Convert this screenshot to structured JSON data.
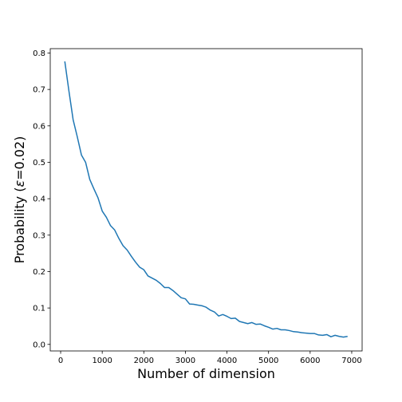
{
  "chart_data": {
    "type": "line",
    "title": "",
    "xlabel": "Number of dimension",
    "ylabel_prefix": "Probability (",
    "ylabel_symbol": "ε",
    "ylabel_suffix": "=0.02)",
    "xlim": [
      -250,
      7250
    ],
    "ylim": [
      -0.018,
      0.812
    ],
    "xticks": [
      0,
      1000,
      2000,
      3000,
      4000,
      5000,
      6000,
      7000
    ],
    "yticks": [
      0.0,
      0.1,
      0.2,
      0.3,
      0.4,
      0.5,
      0.6,
      0.7,
      0.8
    ],
    "ytick_decimals": 1,
    "grid": false,
    "series": [
      {
        "color": "#1f77b4",
        "x": [
          100,
          200,
          300,
          400,
          500,
          600,
          700,
          800,
          900,
          1000,
          1100,
          1200,
          1300,
          1400,
          1500,
          1600,
          1700,
          1800,
          1900,
          2000,
          2100,
          2200,
          2300,
          2400,
          2500,
          2600,
          2700,
          2800,
          2900,
          3000,
          3100,
          3200,
          3300,
          3400,
          3500,
          3600,
          3700,
          3800,
          3900,
          4000,
          4100,
          4200,
          4300,
          4400,
          4500,
          4600,
          4700,
          4800,
          4900,
          5000,
          5100,
          5200,
          5300,
          5400,
          5500,
          5600,
          5700,
          5800,
          5900,
          6000,
          6100,
          6200,
          6300,
          6400,
          6500,
          6600,
          6700,
          6800,
          6900
        ],
        "y": [
          0.777,
          0.695,
          0.617,
          0.57,
          0.52,
          0.5,
          0.453,
          0.427,
          0.402,
          0.366,
          0.349,
          0.326,
          0.314,
          0.291,
          0.271,
          0.259,
          0.242,
          0.226,
          0.212,
          0.205,
          0.188,
          0.182,
          0.176,
          0.167,
          0.156,
          0.156,
          0.148,
          0.138,
          0.128,
          0.125,
          0.111,
          0.11,
          0.108,
          0.106,
          0.102,
          0.094,
          0.089,
          0.078,
          0.082,
          0.077,
          0.071,
          0.072,
          0.063,
          0.06,
          0.057,
          0.06,
          0.055,
          0.056,
          0.051,
          0.047,
          0.042,
          0.044,
          0.04,
          0.04,
          0.038,
          0.035,
          0.034,
          0.032,
          0.031,
          0.03,
          0.03,
          0.026,
          0.025,
          0.027,
          0.021,
          0.025,
          0.022,
          0.02,
          0.022
        ]
      }
    ]
  }
}
